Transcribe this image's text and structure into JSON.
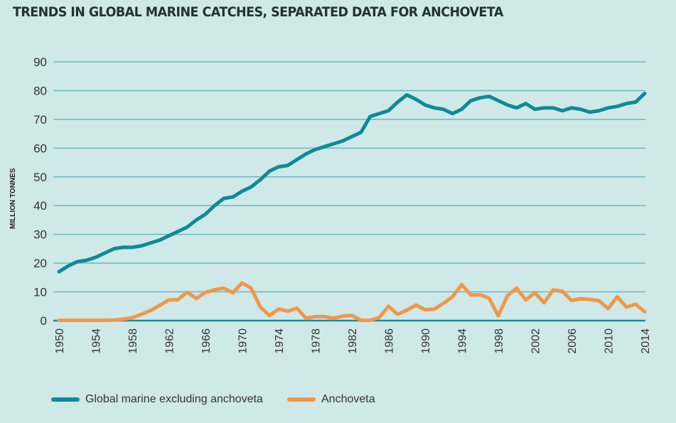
{
  "chart_data": {
    "type": "line",
    "title": "TRENDS IN GLOBAL MARINE CATCHES, SEPARATED DATA FOR ANCHOVETA",
    "ylabel": "MILLION TONNES",
    "xlabel": "",
    "ylim": [
      0,
      90
    ],
    "yticks": [
      "0",
      "10",
      "20",
      "30",
      "40",
      "50",
      "60",
      "70",
      "80",
      "90"
    ],
    "xlim": [
      1950,
      2014
    ],
    "xticks": [
      "1950",
      "1954",
      "1958",
      "1962",
      "1966",
      "1970",
      "1974",
      "1978",
      "1982",
      "1986",
      "1990",
      "1994",
      "1998",
      "2002",
      "2006",
      "2010",
      "2014"
    ],
    "grid": true,
    "legend_position": "bottom",
    "x": [
      1950,
      1951,
      1952,
      1953,
      1954,
      1955,
      1956,
      1957,
      1958,
      1959,
      1960,
      1961,
      1962,
      1963,
      1964,
      1965,
      1966,
      1967,
      1968,
      1969,
      1970,
      1971,
      1972,
      1973,
      1974,
      1975,
      1976,
      1977,
      1978,
      1979,
      1980,
      1981,
      1982,
      1983,
      1984,
      1985,
      1986,
      1987,
      1988,
      1989,
      1990,
      1991,
      1992,
      1993,
      1994,
      1995,
      1996,
      1997,
      1998,
      1999,
      2000,
      2001,
      2002,
      2003,
      2004,
      2005,
      2006,
      2007,
      2008,
      2009,
      2010,
      2011,
      2012,
      2013,
      2014
    ],
    "series": [
      {
        "name": "Global marine excluding anchoveta",
        "color": "#0e8a9a",
        "values": [
          17,
          19,
          20.5,
          21,
          22,
          23.5,
          25,
          25.5,
          25.5,
          26,
          27,
          28,
          29.5,
          31,
          32.5,
          35,
          37,
          40,
          42.5,
          43,
          45,
          46.5,
          49,
          52,
          53.5,
          54,
          56,
          58,
          59.5,
          60.5,
          61.5,
          62.5,
          64,
          65.5,
          71,
          72,
          73,
          76,
          78.5,
          77,
          75,
          74,
          73.5,
          72,
          73.5,
          76.5,
          77.5,
          78,
          76.5,
          75,
          74,
          75.5,
          73.5,
          74,
          74,
          73,
          74,
          73.5,
          72.5,
          73,
          74,
          74.5,
          75.5,
          76,
          79
        ]
      },
      {
        "name": "Anchoveta",
        "color": "#f0974a",
        "values": [
          0.1,
          0.1,
          0.1,
          0.1,
          0.1,
          0.1,
          0.2,
          0.5,
          1,
          2.2,
          3.5,
          5.3,
          7.2,
          7.3,
          9.9,
          7.7,
          9.8,
          10.7,
          11.3,
          9.7,
          13.1,
          11.3,
          4.7,
          1.8,
          4.0,
          3.3,
          4.3,
          0.8,
          1.4,
          1.4,
          0.8,
          1.6,
          1.8,
          0.1,
          0.1,
          1.1,
          5,
          2.2,
          3.6,
          5.4,
          3.8,
          4.0,
          6.0,
          8.3,
          12.5,
          8.9,
          9.0,
          7.8,
          1.7,
          8.7,
          11.3,
          7.2,
          9.7,
          6.2,
          10.7,
          10.2,
          7.0,
          7.6,
          7.4,
          6.9,
          4.2,
          8.3,
          4.7,
          5.7,
          3.1
        ]
      }
    ]
  }
}
